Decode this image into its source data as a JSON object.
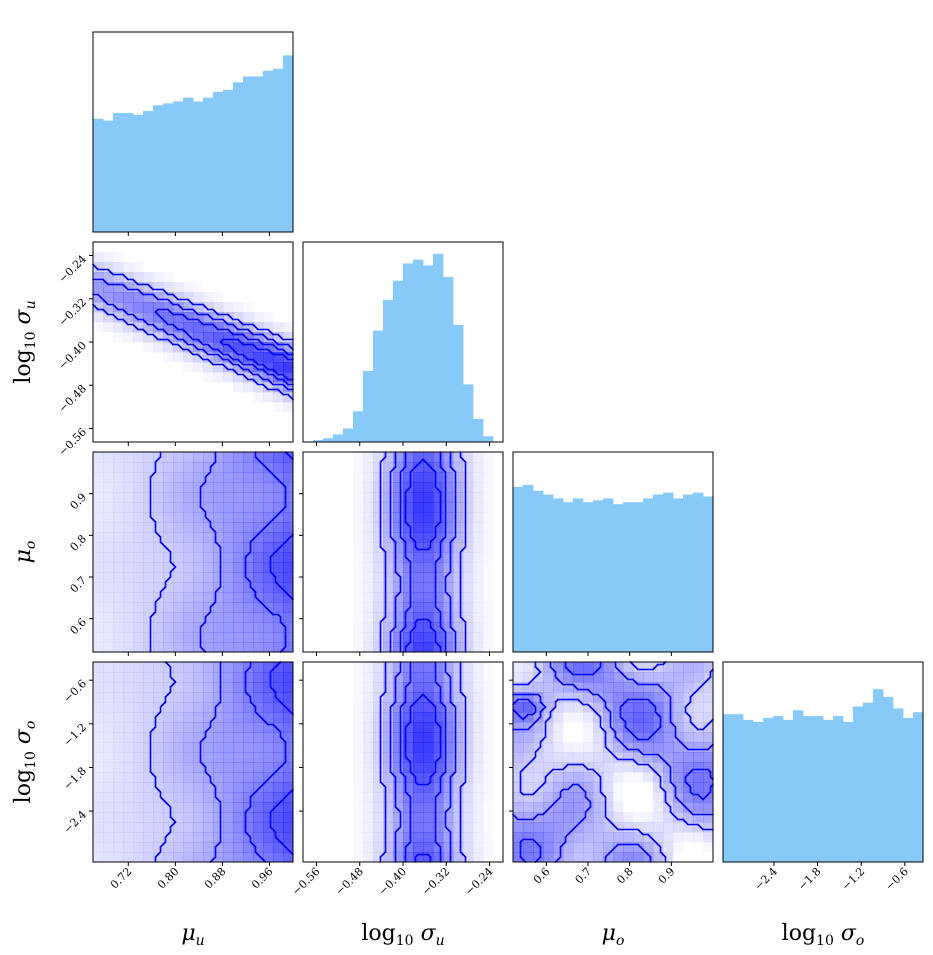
{
  "chart_data": {
    "type": "corner",
    "parameters": [
      {
        "base": "log",
        "sub10": "10",
        "sym": "σ",
        "symsub": "u"
      },
      {
        "base": "",
        "sub10": "",
        "sym": "μ",
        "symsub": "u"
      },
      {
        "base": "",
        "sub10": "",
        "sym": "μ",
        "symsub": "o"
      },
      {
        "base": "log",
        "sub10": "10",
        "sym": "σ",
        "symsub": "o"
      }
    ],
    "axis_titles_bottom": [
      "μ_u",
      "log10 σ_u",
      "μ_o",
      "log10 σ_o"
    ],
    "axis_titles_left": [
      "log10 σ_u",
      "μ_o",
      "log10 σ_o"
    ],
    "ranges": [
      [
        0.66,
        1.0
      ],
      [
        -0.585,
        -0.215
      ],
      [
        0.52,
        1.0
      ],
      [
        -3.1,
        -0.35
      ]
    ],
    "ticks": [
      [
        0.72,
        0.8,
        0.88,
        0.96
      ],
      [
        -0.56,
        -0.48,
        -0.4,
        -0.32,
        -0.24
      ],
      [
        0.6,
        0.7,
        0.8,
        0.9
      ],
      [
        -2.4,
        -1.8,
        -1.2,
        -0.6
      ]
    ],
    "tick_labels": [
      [
        "0.72",
        "0.80",
        "0.88",
        "0.96"
      ],
      [
        "−0.56",
        "−0.48",
        "−0.40",
        "−0.32",
        "−0.24"
      ],
      [
        "0.6",
        "0.7",
        "0.8",
        "0.9"
      ],
      [
        "−2.4",
        "−1.8",
        "−1.2",
        "−0.6"
      ]
    ],
    "histograms": [
      {
        "param": "mu_u",
        "heights": [
          0.59,
          0.58,
          0.62,
          0.62,
          0.61,
          0.63,
          0.66,
          0.67,
          0.68,
          0.7,
          0.68,
          0.7,
          0.73,
          0.74,
          0.78,
          0.81,
          0.81,
          0.84,
          0.85,
          0.92
        ]
      },
      {
        "param": "log10_sigma_u",
        "heights": [
          0.0,
          0.01,
          0.02,
          0.04,
          0.07,
          0.16,
          0.37,
          0.58,
          0.74,
          0.84,
          0.93,
          0.95,
          0.92,
          0.98,
          0.86,
          0.61,
          0.3,
          0.12,
          0.03,
          0.0
        ]
      },
      {
        "param": "mu_o",
        "heights": [
          0.86,
          0.87,
          0.84,
          0.82,
          0.8,
          0.78,
          0.8,
          0.78,
          0.79,
          0.8,
          0.77,
          0.78,
          0.78,
          0.8,
          0.82,
          0.83,
          0.8,
          0.82,
          0.83,
          0.81
        ]
      },
      {
        "param": "log10_sigma_o",
        "heights": [
          0.77,
          0.77,
          0.74,
          0.73,
          0.75,
          0.76,
          0.74,
          0.79,
          0.76,
          0.76,
          0.74,
          0.76,
          0.73,
          0.81,
          0.83,
          0.9,
          0.86,
          0.8,
          0.75,
          0.78
        ]
      }
    ],
    "colors": {
      "histogram_fill": "#87cafa",
      "contour_line": "#0000ff",
      "density": "#0000ff"
    },
    "contour_levels": [
      0.39,
      0.86,
      0.99
    ],
    "grid": false,
    "legend": "none"
  }
}
